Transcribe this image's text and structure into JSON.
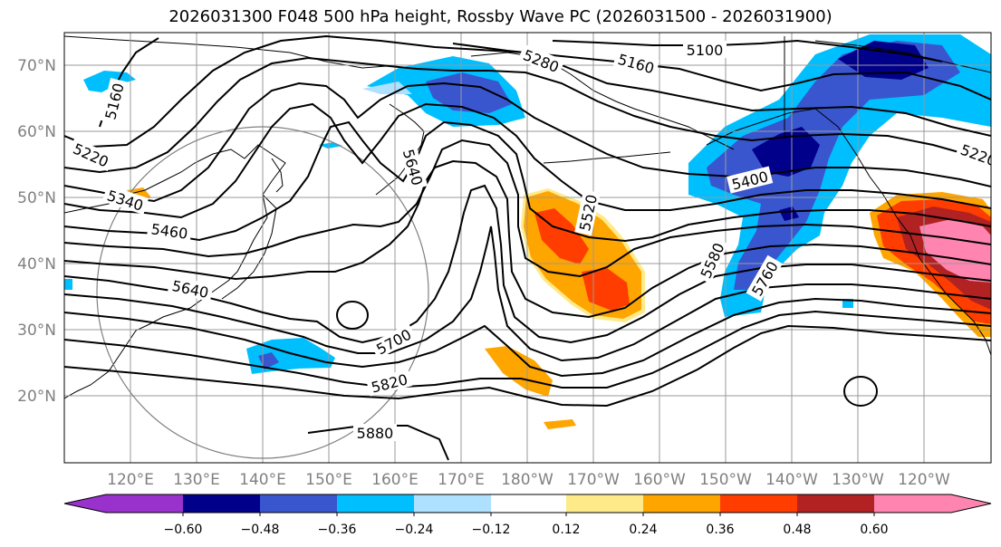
{
  "title": "2026031300 F048 500 hPa height, Rossby Wave PC (2026031500 - 2026031900)",
  "latitude_labels": [
    "70°N",
    "60°N",
    "50°N",
    "40°N",
    "30°N",
    "20°N"
  ],
  "longitude_labels": [
    "120°E",
    "130°E",
    "140°E",
    "150°E",
    "160°E",
    "170°E",
    "180°W",
    "170°W",
    "160°W",
    "150°W",
    "140°W",
    "130°W",
    "120°W"
  ],
  "contour_labels": [
    "5100",
    "5160",
    "5160",
    "5220",
    "5220",
    "5280",
    "5340",
    "5400",
    "5460",
    "5520",
    "5580",
    "5640",
    "5640",
    "5700",
    "5760",
    "5820",
    "5880"
  ],
  "colorbar": {
    "tick_labels": [
      "−0.60",
      "−0.48",
      "−0.36",
      "−0.24",
      "−0.12",
      "0.12",
      "0.24",
      "0.36",
      "0.48",
      "0.60"
    ],
    "colors": [
      "#9932cc",
      "#00008b",
      "#3a56cf",
      "#00bfff",
      "#aee0ff",
      "#ffffff",
      "#ffea8a",
      "#ffa500",
      "#ff3d00",
      "#b22222",
      "#ff85b0"
    ]
  },
  "colors": {
    "contour": "#000000",
    "coast": "#000000",
    "grid": "#999999",
    "axis_label": "#808080"
  }
}
